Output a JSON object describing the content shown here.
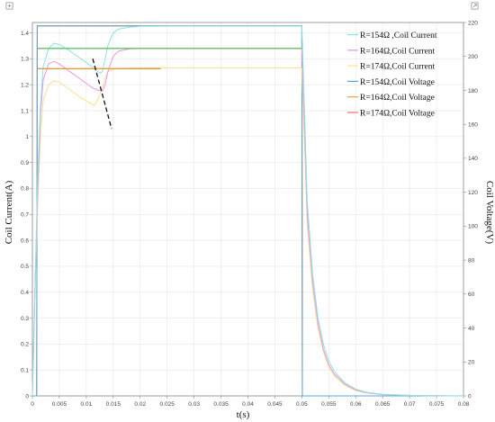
{
  "chart_data": {
    "type": "line",
    "xlabel": "t(s)",
    "ylabel": "Coil Current(A)",
    "y2label": "Coil Voltage(V)",
    "xlim": [
      0,
      0.08
    ],
    "ylim": [
      0,
      1.44
    ],
    "y2lim": [
      0,
      220
    ],
    "xticks": [
      "0",
      "0.005",
      "0.01",
      "0.015",
      "0.02",
      "0.025",
      "0.03",
      "0.035",
      "0.04",
      "0.045",
      "0.05",
      "0.055",
      "0.06",
      "0.065",
      "0.07",
      "0.075",
      "0.08"
    ],
    "yticks": [
      "0",
      "0.1",
      "0.2",
      "0.3",
      "0.4",
      "0.5",
      "0.6",
      "0.7",
      "0.8",
      "0.9",
      "1",
      "1.1",
      "1.2",
      "1.3",
      "1.4"
    ],
    "y2ticks": [
      "0",
      "20",
      "40",
      "60",
      "80",
      "100",
      "120",
      "140",
      "160",
      "180",
      "200",
      "220"
    ],
    "grid": true,
    "legend_position": "top-right",
    "series": [
      {
        "name": "R=154Ω ,Coil Current",
        "color": "#86e3e6",
        "axis": "left",
        "x": [
          0,
          0.0005,
          0.001,
          0.0015,
          0.002,
          0.003,
          0.004,
          0.005,
          0.007,
          0.009,
          0.011,
          0.0125,
          0.013,
          0.0135,
          0.014,
          0.015,
          0.016,
          0.018,
          0.02,
          0.025,
          0.03,
          0.035,
          0.04,
          0.045,
          0.05,
          0.051,
          0.052,
          0.053,
          0.054,
          0.055,
          0.056,
          0.058,
          0.06,
          0.062,
          0.065,
          0.07,
          0.075,
          0.08
        ],
        "y": [
          0,
          0.45,
          0.85,
          1.12,
          1.27,
          1.34,
          1.36,
          1.355,
          1.33,
          1.3,
          1.27,
          1.245,
          1.25,
          1.3,
          1.35,
          1.4,
          1.415,
          1.422,
          1.425,
          1.426,
          1.426,
          1.426,
          1.426,
          1.426,
          1.426,
          0.75,
          0.47,
          0.3,
          0.2,
          0.135,
          0.095,
          0.05,
          0.026,
          0.014,
          0.006,
          0.002,
          0.001,
          0
        ]
      },
      {
        "name": "R=164Ω,Coil Current",
        "color": "#ea96ea",
        "axis": "left",
        "x": [
          0,
          0.0005,
          0.001,
          0.0015,
          0.002,
          0.003,
          0.004,
          0.005,
          0.007,
          0.009,
          0.011,
          0.012,
          0.013,
          0.0135,
          0.014,
          0.015,
          0.016,
          0.018,
          0.02,
          0.025,
          0.03,
          0.035,
          0.04,
          0.045,
          0.05,
          0.051,
          0.052,
          0.053,
          0.054,
          0.055,
          0.056,
          0.058,
          0.06,
          0.062,
          0.065,
          0.07,
          0.075,
          0.08
        ],
        "y": [
          0,
          0.42,
          0.8,
          1.08,
          1.22,
          1.28,
          1.29,
          1.28,
          1.25,
          1.22,
          1.19,
          1.18,
          1.175,
          1.2,
          1.25,
          1.31,
          1.33,
          1.338,
          1.34,
          1.34,
          1.34,
          1.34,
          1.34,
          1.34,
          1.34,
          0.7,
          0.44,
          0.28,
          0.18,
          0.12,
          0.085,
          0.045,
          0.023,
          0.012,
          0.005,
          0.002,
          0.001,
          0
        ]
      },
      {
        "name": "R=174Ω,Coil Current",
        "color": "#f8e08c",
        "axis": "left",
        "x": [
          0,
          0.0005,
          0.001,
          0.0015,
          0.002,
          0.003,
          0.004,
          0.005,
          0.007,
          0.009,
          0.011,
          0.0115,
          0.012,
          0.013,
          0.0135,
          0.014,
          0.015,
          0.016,
          0.018,
          0.02,
          0.025,
          0.03,
          0.035,
          0.04,
          0.045,
          0.05,
          0.051,
          0.052,
          0.053,
          0.054,
          0.055,
          0.056,
          0.058,
          0.06,
          0.062,
          0.065,
          0.07,
          0.075,
          0.08
        ],
        "y": [
          0,
          0.4,
          0.75,
          1.0,
          1.14,
          1.2,
          1.215,
          1.21,
          1.18,
          1.15,
          1.125,
          1.12,
          1.135,
          1.19,
          1.225,
          1.25,
          1.26,
          1.263,
          1.264,
          1.265,
          1.265,
          1.265,
          1.265,
          1.265,
          1.265,
          1.265,
          0.66,
          0.41,
          0.26,
          0.17,
          0.11,
          0.078,
          0.04,
          0.02,
          0.011,
          0.005,
          0.002,
          0.001,
          0
        ]
      },
      {
        "name": "R=154Ω,Coil Voltage",
        "color": "#5aa8d8",
        "axis": "right",
        "x": [
          0,
          0.0008,
          0.0009,
          0.05,
          0.0501,
          0.08
        ],
        "y": [
          0,
          0,
          218,
          218,
          0,
          0
        ]
      },
      {
        "name": "R=164Ω,Coil Voltage",
        "color": "#e7a43f",
        "axis": "right",
        "x": [
          0,
          0.0008,
          0.0009,
          0.05,
          0.0501,
          0.08
        ],
        "y": [
          0,
          0,
          218,
          218,
          0,
          0
        ]
      },
      {
        "name": "R=174Ω,Coil Voltage",
        "color": "#f36b6b",
        "axis": "right",
        "x": [
          0,
          0.0008,
          0.0009,
          0.05,
          0.0501,
          0.08
        ],
        "y": [
          0,
          0,
          218,
          218,
          0,
          0
        ]
      }
    ],
    "reference_lines": [
      {
        "color": "#64c064",
        "axis": "left",
        "x": [
          0.001,
          0.05
        ],
        "y": [
          1.34,
          1.34
        ]
      },
      {
        "color": "#e79a3a",
        "axis": "left",
        "x": [
          0.001,
          0.0238
        ],
        "y": [
          1.262,
          1.262
        ]
      }
    ],
    "annotation_line": {
      "color": "#111111",
      "style": "dashed",
      "x": [
        0.0112,
        0.0147
      ],
      "y": [
        1.3,
        1.03
      ]
    }
  },
  "colors": {
    "axis": "#888888",
    "grid": "#e6e6e6",
    "background": "#ffffff"
  },
  "icons": {
    "top_left": "settings-icon",
    "top_right": "export-icon"
  }
}
